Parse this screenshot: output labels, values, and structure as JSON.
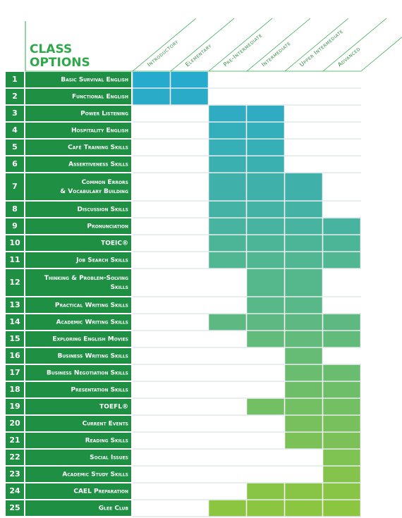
{
  "header": {
    "title_lines": [
      "CLASS",
      "OPTIONS"
    ]
  },
  "levels": [
    "Introductory",
    "Elementary",
    "Pre-Intermediate",
    "Intermediate",
    "Upper Intermediate",
    "Advanced"
  ],
  "rows": [
    {
      "number": 1,
      "name": [
        "Basic Survival English"
      ],
      "offered": [
        true,
        true,
        false,
        false,
        false,
        false
      ]
    },
    {
      "number": 2,
      "name": [
        "Functional English"
      ],
      "offered": [
        true,
        true,
        false,
        false,
        false,
        false
      ]
    },
    {
      "number": 3,
      "name": [
        "Power Listening"
      ],
      "offered": [
        false,
        false,
        true,
        true,
        false,
        false
      ]
    },
    {
      "number": 4,
      "name": [
        "Hospitality English"
      ],
      "offered": [
        false,
        false,
        true,
        true,
        false,
        false
      ]
    },
    {
      "number": 5,
      "name": [
        "Café Training Skills"
      ],
      "offered": [
        false,
        false,
        true,
        true,
        false,
        false
      ]
    },
    {
      "number": 6,
      "name": [
        "Assertiveness Skills"
      ],
      "offered": [
        false,
        false,
        true,
        true,
        false,
        false
      ]
    },
    {
      "number": 7,
      "name": [
        "Common Errors",
        "& Vocabulary Building"
      ],
      "offered": [
        false,
        false,
        true,
        true,
        true,
        false
      ]
    },
    {
      "number": 8,
      "name": [
        "Discussion Skills"
      ],
      "offered": [
        false,
        false,
        true,
        true,
        true,
        false
      ]
    },
    {
      "number": 9,
      "name": [
        "Pronunciation"
      ],
      "offered": [
        false,
        false,
        true,
        true,
        true,
        true
      ]
    },
    {
      "number": 10,
      "name": [
        "TOEIC®"
      ],
      "offered": [
        false,
        false,
        true,
        true,
        true,
        true
      ]
    },
    {
      "number": 11,
      "name": [
        "Job Search Skills"
      ],
      "offered": [
        false,
        false,
        true,
        true,
        true,
        true
      ]
    },
    {
      "number": 12,
      "name": [
        "Thinking & Problem-Solving",
        "Skills"
      ],
      "offered": [
        false,
        false,
        false,
        true,
        true,
        false
      ]
    },
    {
      "number": 13,
      "name": [
        "Practical Writing Skills"
      ],
      "offered": [
        false,
        false,
        false,
        true,
        true,
        false
      ]
    },
    {
      "number": 14,
      "name": [
        "Academic Writing Skills"
      ],
      "offered": [
        false,
        false,
        true,
        true,
        true,
        true
      ]
    },
    {
      "number": 15,
      "name": [
        "Exploring English Movies"
      ],
      "offered": [
        false,
        false,
        false,
        true,
        true,
        true
      ]
    },
    {
      "number": 16,
      "name": [
        "Business Writing Skills"
      ],
      "offered": [
        false,
        false,
        false,
        false,
        true,
        false
      ]
    },
    {
      "number": 17,
      "name": [
        "Business Negotiation Skills"
      ],
      "offered": [
        false,
        false,
        false,
        false,
        true,
        true
      ]
    },
    {
      "number": 18,
      "name": [
        "Presentation Skills"
      ],
      "offered": [
        false,
        false,
        false,
        false,
        true,
        true
      ]
    },
    {
      "number": 19,
      "name": [
        "TOEFL®"
      ],
      "offered": [
        false,
        false,
        false,
        true,
        true,
        true
      ]
    },
    {
      "number": 20,
      "name": [
        "Current Events"
      ],
      "offered": [
        false,
        false,
        false,
        false,
        true,
        true
      ]
    },
    {
      "number": 21,
      "name": [
        "Reading Skills"
      ],
      "offered": [
        false,
        false,
        false,
        false,
        true,
        true
      ]
    },
    {
      "number": 22,
      "name": [
        "Social Issues"
      ],
      "offered": [
        false,
        false,
        false,
        false,
        false,
        true
      ]
    },
    {
      "number": 23,
      "name": [
        "Academic Study Skills"
      ],
      "offered": [
        false,
        false,
        false,
        false,
        false,
        true
      ]
    },
    {
      "number": 24,
      "name": [
        "CAEL Preparation"
      ],
      "offered": [
        false,
        false,
        false,
        true,
        true,
        true
      ]
    },
    {
      "number": 25,
      "name": [
        "Glee Club"
      ],
      "offered": [
        false,
        false,
        true,
        true,
        true,
        true
      ]
    }
  ]
}
